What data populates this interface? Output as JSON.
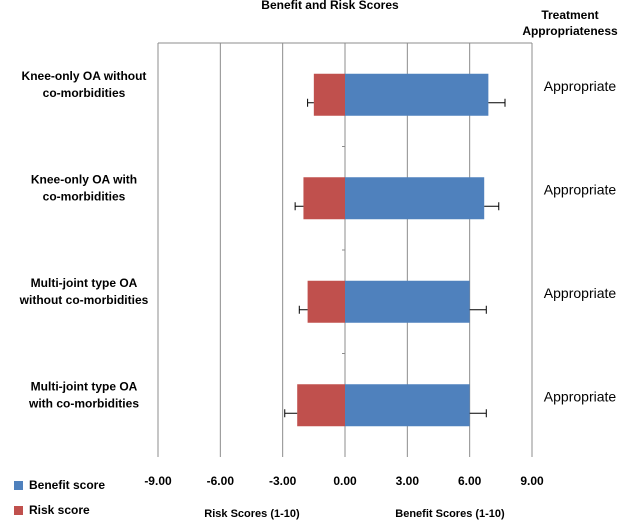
{
  "chart_data": {
    "type": "bar",
    "orientation": "horizontal",
    "title": "Benefit and Risk Scores",
    "right_header": [
      "Treatment",
      "Appropriateness"
    ],
    "categories": [
      [
        "Knee-only OA without",
        "co-morbidities"
      ],
      [
        "Knee-only OA with",
        "co-morbidities"
      ],
      [
        "Multi-joint type OA",
        "without co-morbidities"
      ],
      [
        "Multi-joint type OA",
        "with co-morbidities"
      ]
    ],
    "series": [
      {
        "name": "Benefit score",
        "color": "#4f81bd",
        "values": [
          6.9,
          6.7,
          6.0,
          6.0
        ],
        "error": [
          0.8,
          0.7,
          0.8,
          0.8
        ]
      },
      {
        "name": "Risk score",
        "color": "#c0504d",
        "values": [
          -1.5,
          -2.0,
          -1.8,
          -2.3
        ],
        "error": [
          0.3,
          0.4,
          0.4,
          0.6
        ]
      }
    ],
    "appropriateness": [
      "Appropriate",
      "Appropriate",
      "Appropriate",
      "Appropriate"
    ],
    "xlim": [
      -9,
      9
    ],
    "xticks": [
      "-9.00",
      "-6.00",
      "-3.00",
      "0.00",
      "3.00",
      "6.00",
      "9.00"
    ],
    "xlabel_left": "Risk  Scores (1-10)",
    "xlabel_right": "Benefit Scores (1-10)",
    "grid": "vertical",
    "legend_position": "bottom-left"
  }
}
